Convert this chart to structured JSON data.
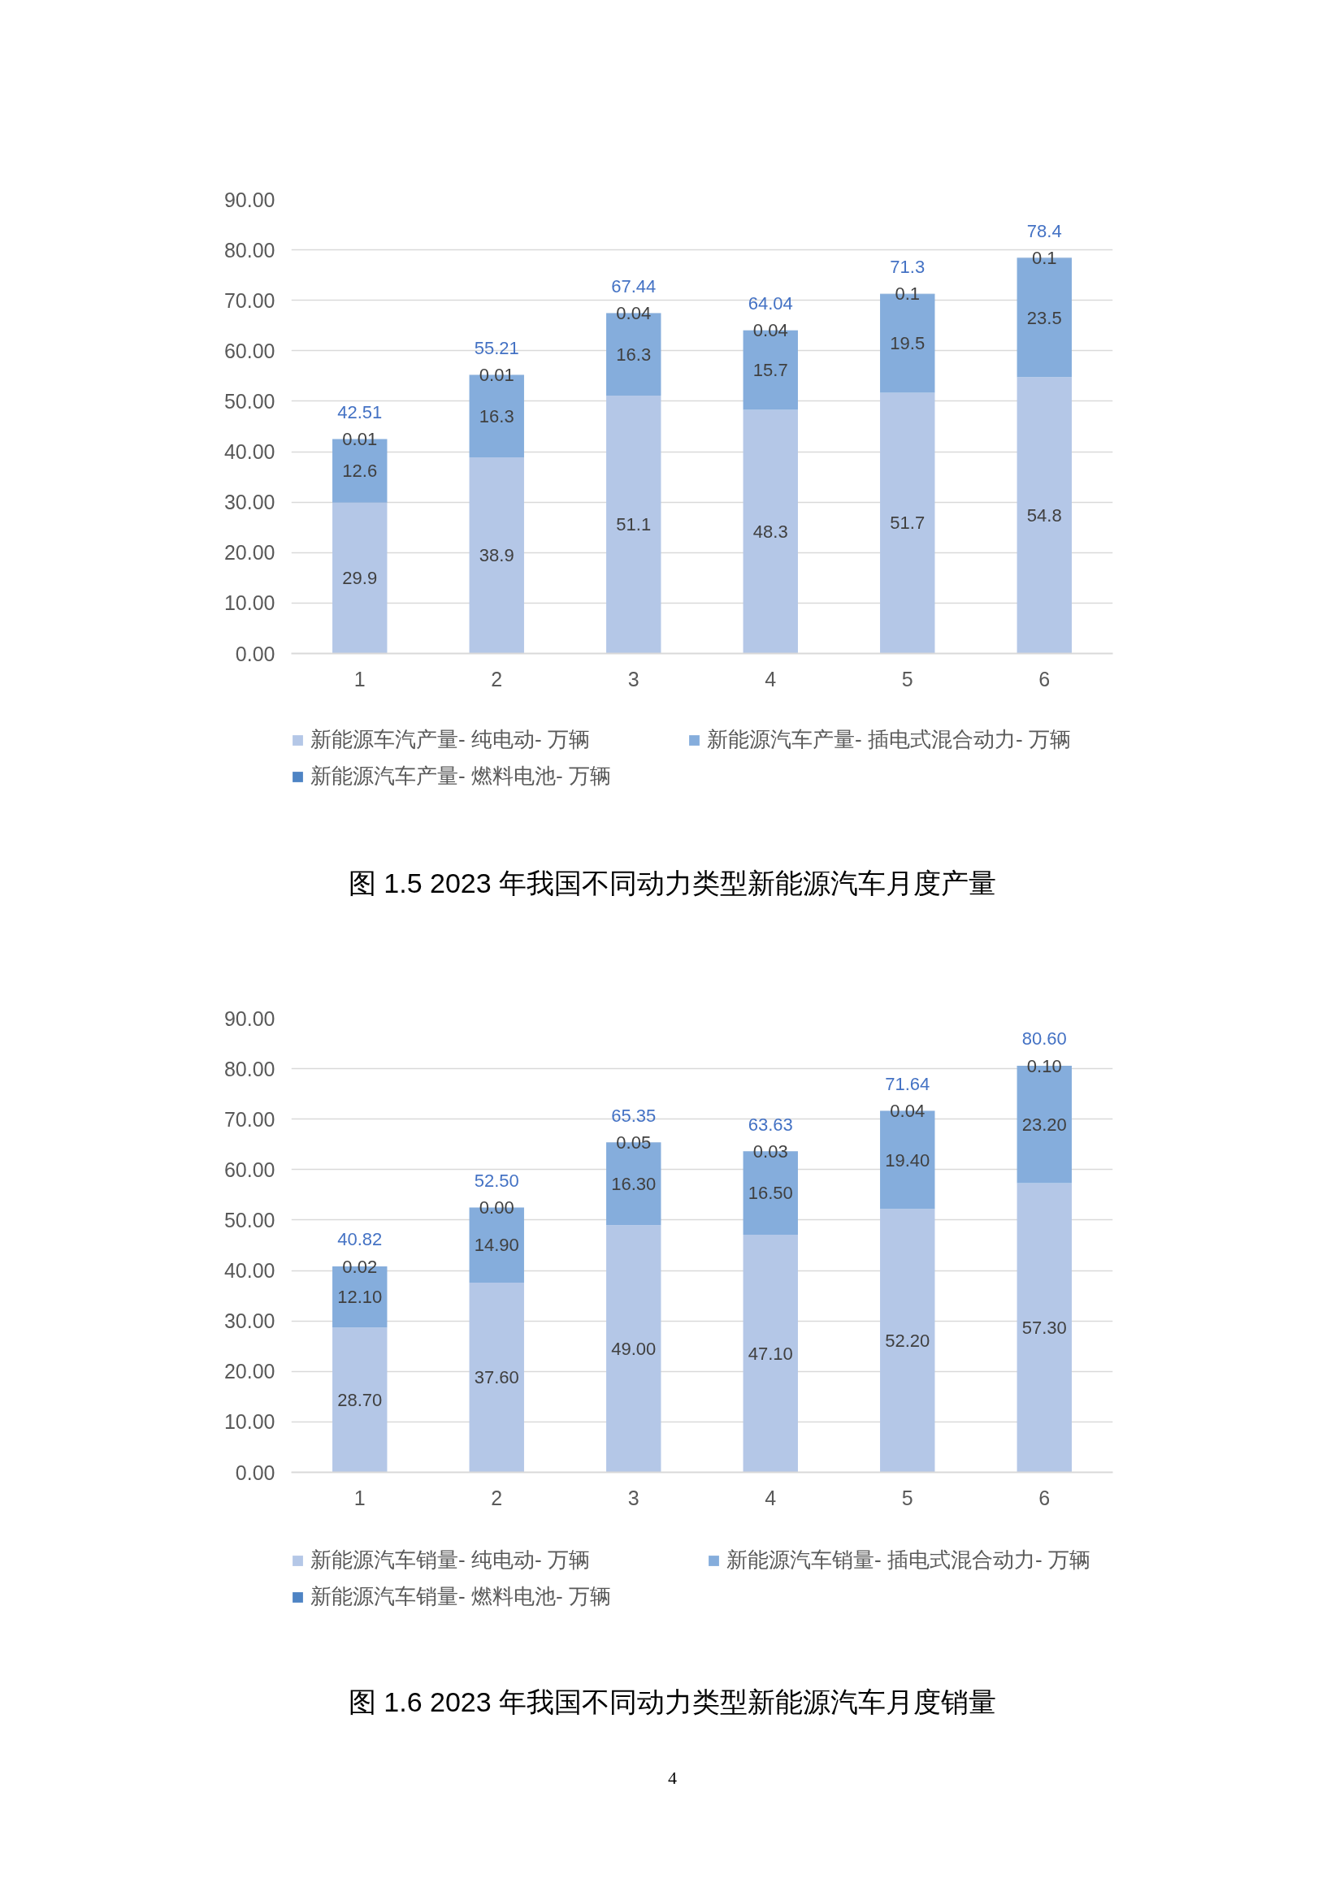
{
  "chart_data": [
    {
      "type": "bar",
      "title": "图 1.5 2023 年我国不同动力类型新能源汽车月度产量",
      "categories": [
        "1",
        "2",
        "3",
        "4",
        "5",
        "6"
      ],
      "stacked": true,
      "series": [
        {
          "name": "新能源车汽产量- 纯电动- 万辆",
          "color": "#b4c7e7",
          "values": [
            29.9,
            38.9,
            51.1,
            48.3,
            51.7,
            54.8
          ]
        },
        {
          "name": "新能源汽车产量- 插电式混合动力- 万辆",
          "color": "#85addc",
          "values": [
            12.6,
            16.3,
            16.3,
            15.7,
            19.5,
            23.5
          ]
        },
        {
          "name": "新能源汽车产量- 燃料电池- 万辆",
          "color": "#4e84c4",
          "values": [
            0.01,
            0.01,
            0.04,
            0.04,
            0.1,
            0.1
          ]
        }
      ],
      "data_labels": true,
      "totals": [
        "42.51",
        "55.21",
        "67.44",
        "64.04",
        "71.3",
        "78.4"
      ],
      "ylim": [
        0,
        90
      ],
      "yticks": [
        {
          "value": 0,
          "label": "0.00"
        },
        {
          "value": 10,
          "label": "10.00"
        },
        {
          "value": 20,
          "label": "20.00"
        },
        {
          "value": 30,
          "label": "30.00"
        },
        {
          "value": 40,
          "label": "40.00"
        },
        {
          "value": 50,
          "label": "50.00"
        },
        {
          "value": 60,
          "label": "60.00"
        },
        {
          "value": 70,
          "label": "70.00"
        },
        {
          "value": 80,
          "label": "80.00"
        },
        {
          "value": 90,
          "label": "90.00"
        }
      ],
      "grid": "y",
      "legend": "bottom"
    },
    {
      "type": "bar",
      "title": "图 1.6 2023 年我国不同动力类型新能源汽车月度销量",
      "categories": [
        "1",
        "2",
        "3",
        "4",
        "5",
        "6"
      ],
      "stacked": true,
      "series": [
        {
          "name": "新能源汽车销量- 纯电动- 万辆",
          "color": "#b4c7e7",
          "values": [
            28.7,
            37.6,
            49.0,
            47.1,
            52.2,
            57.3
          ],
          "value_labels": [
            "28.70",
            "37.60",
            "49.00",
            "47.10",
            "52.20",
            "57.30"
          ]
        },
        {
          "name": "新能源汽车销量- 插电式混合动力- 万辆",
          "color": "#85addc",
          "values": [
            12.1,
            14.9,
            16.3,
            16.5,
            19.4,
            23.2
          ],
          "value_labels": [
            "12.10",
            "14.90",
            "16.30",
            "16.50",
            "19.40",
            "23.20"
          ]
        },
        {
          "name": "新能源汽车销量- 燃料电池- 万辆",
          "color": "#4e84c4",
          "values": [
            0.02,
            0.0,
            0.05,
            0.03,
            0.04,
            0.1
          ],
          "value_labels": [
            "0.02",
            "0.00",
            "0.05",
            "0.03",
            "0.04",
            "0.10"
          ]
        }
      ],
      "totals": [
        "40.82",
        "52.50",
        "65.35",
        "63.63",
        "71.64",
        "80.60"
      ],
      "ylim": [
        0,
        90
      ],
      "yticks": [
        {
          "value": 0,
          "label": "0.00"
        },
        {
          "value": 10,
          "label": "10.00"
        },
        {
          "value": 20,
          "label": "20.00"
        },
        {
          "value": 30,
          "label": "30.00"
        },
        {
          "value": 40,
          "label": "40.00"
        },
        {
          "value": 50,
          "label": "50.00"
        },
        {
          "value": 60,
          "label": "60.00"
        },
        {
          "value": 70,
          "label": "70.00"
        },
        {
          "value": 80,
          "label": "80.00"
        },
        {
          "value": 90,
          "label": "90.00"
        }
      ],
      "grid": "y",
      "legend": "bottom",
      "annotations": [
        "4"
      ]
    }
  ]
}
